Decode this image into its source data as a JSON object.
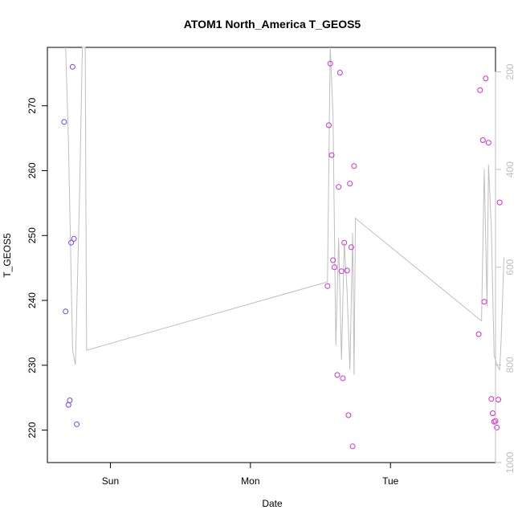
{
  "chart_data": {
    "type": "scatter",
    "title": "ATOM1 North_America T_GEOS5",
    "xlabel": "Date",
    "ylabel": "T_GEOS5",
    "x_ticks": [
      "Sun",
      "Mon",
      "Tue"
    ],
    "y_ticks": [
      220,
      230,
      240,
      250,
      260,
      270
    ],
    "ylim": [
      215,
      279
    ],
    "right_axis": {
      "ticks": [
        200,
        400,
        600,
        800,
        1000
      ],
      "ylim_reversed": [
        1000,
        150
      ],
      "color": "#bebebe"
    },
    "x_range_days": [
      -0.45,
      2.75
    ],
    "grid": false,
    "line_series": {
      "color": "#bebebe",
      "points": [
        [
          -0.32,
          150
        ],
        [
          -0.3,
          340
        ],
        [
          -0.27,
          770
        ],
        [
          -0.25,
          800
        ],
        [
          -0.22,
          450
        ],
        [
          -0.2,
          150
        ],
        [
          -0.18,
          150
        ],
        [
          -0.17,
          770
        ],
        [
          1.55,
          630
        ],
        [
          1.57,
          150
        ],
        [
          1.59,
          290
        ],
        [
          1.61,
          760
        ],
        [
          1.63,
          540
        ],
        [
          1.65,
          790
        ],
        [
          1.67,
          550
        ],
        [
          1.69,
          650
        ],
        [
          1.71,
          810
        ],
        [
          1.73,
          530
        ],
        [
          1.74,
          820
        ],
        [
          1.75,
          500
        ],
        [
          2.65,
          710
        ],
        [
          2.67,
          400
        ],
        [
          2.69,
          680
        ],
        [
          2.7,
          390
        ],
        [
          2.72,
          520
        ],
        [
          2.74,
          780
        ],
        [
          2.76,
          800
        ],
        [
          2.78,
          810
        ],
        [
          2.79,
          750
        ],
        [
          2.81,
          580
        ]
      ]
    },
    "series": [
      {
        "color": "#7b3fff",
        "points": [
          [
            -0.33,
            267.5
          ],
          [
            -0.32,
            238.3
          ],
          [
            -0.3,
            223.9
          ],
          [
            -0.29,
            224.6
          ],
          [
            -0.28,
            248.9
          ],
          [
            -0.27,
            276
          ],
          [
            -0.26,
            249.5
          ],
          [
            -0.24,
            220.9
          ]
        ]
      },
      {
        "color": "#cc33cc",
        "points": [
          [
            1.55,
            242.2
          ],
          [
            1.57,
            276.5
          ],
          [
            1.56,
            267
          ],
          [
            1.58,
            262.4
          ],
          [
            1.59,
            246.2
          ],
          [
            1.6,
            245.1
          ],
          [
            1.62,
            228.5
          ],
          [
            1.63,
            257.5
          ],
          [
            1.64,
            275.1
          ],
          [
            1.65,
            244.5
          ],
          [
            1.66,
            228
          ],
          [
            1.67,
            248.9
          ],
          [
            1.69,
            244.6
          ],
          [
            1.7,
            222.3
          ],
          [
            1.71,
            258
          ],
          [
            1.72,
            248.2
          ],
          [
            1.73,
            217.5
          ],
          [
            1.74,
            260.7
          ]
        ]
      },
      {
        "color": "#dd22cc",
        "points": [
          [
            2.63,
            234.8
          ],
          [
            2.64,
            272.4
          ],
          [
            2.66,
            264.7
          ],
          [
            2.67,
            239.8
          ],
          [
            2.68,
            274.2
          ],
          [
            2.7,
            264.3
          ],
          [
            2.72,
            224.8
          ],
          [
            2.73,
            222.6
          ],
          [
            2.74,
            221.3
          ],
          [
            2.75,
            221.4
          ],
          [
            2.76,
            220.4
          ],
          [
            2.77,
            224.7
          ],
          [
            2.78,
            255.1
          ]
        ]
      }
    ]
  }
}
